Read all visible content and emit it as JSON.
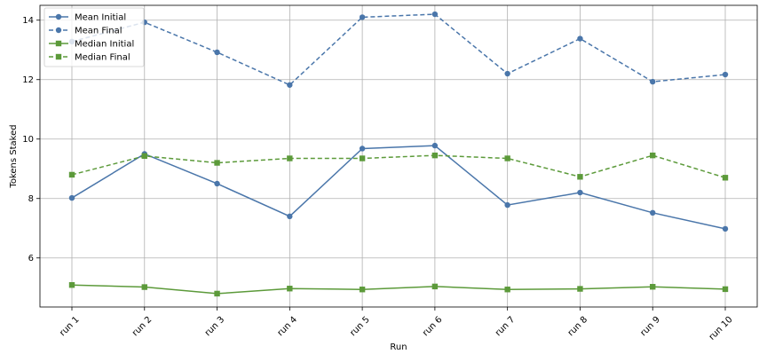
{
  "chart_data": {
    "type": "line",
    "title": "",
    "xlabel": "Run",
    "ylabel": "Tokens Staked",
    "categories": [
      "run 1",
      "run 2",
      "run 3",
      "run 4",
      "run 5",
      "run 6",
      "run 7",
      "run 8",
      "run 9",
      "run 10"
    ],
    "ylim": [
      4.35,
      14.5
    ],
    "yticks": [
      6,
      8,
      10,
      12,
      14
    ],
    "grid": true,
    "legend_position": "top-left",
    "series": [
      {
        "name": "Mean Initial",
        "color": "#4a76aa",
        "dash": "solid",
        "marker": "circle",
        "values": [
          8.02,
          9.5,
          8.5,
          7.4,
          9.68,
          9.78,
          7.78,
          8.2,
          7.52,
          6.98
        ]
      },
      {
        "name": "Mean Final",
        "color": "#4a76aa",
        "dash": "dashed",
        "marker": "circle",
        "values": [
          13.28,
          13.93,
          12.92,
          11.82,
          14.1,
          14.2,
          12.2,
          13.38,
          11.93,
          12.17
        ]
      },
      {
        "name": "Median Initial",
        "color": "#5c9a3a",
        "dash": "solid",
        "marker": "square",
        "values": [
          5.09,
          5.02,
          4.8,
          4.97,
          4.94,
          5.04,
          4.94,
          4.96,
          5.03,
          4.95
        ]
      },
      {
        "name": "Median Final",
        "color": "#5c9a3a",
        "dash": "dashed",
        "marker": "square",
        "values": [
          8.8,
          9.43,
          9.2,
          9.35,
          9.35,
          9.45,
          9.35,
          8.73,
          9.45,
          8.7
        ]
      }
    ]
  }
}
